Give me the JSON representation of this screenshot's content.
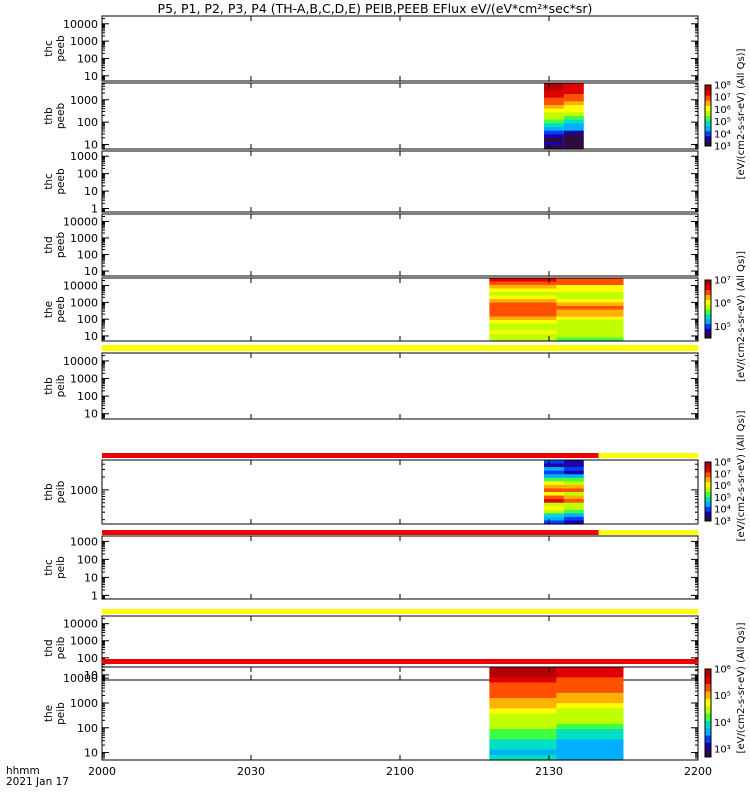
{
  "title": "P5, P1, P2, P3, P4 (TH-A,B,C,D,E) PEIB,PEEB EFlux eV/(eV*cm²*sec*sr)",
  "footer": {
    "label1": "hhmm",
    "label2": "2021 Jan 17"
  },
  "colors": {
    "rainbow": [
      "#2d0b3f",
      "#1a00a8",
      "#0040ff",
      "#00b0ff",
      "#00e0c0",
      "#40ff40",
      "#c0ff00",
      "#ffff00",
      "#ffb000",
      "#ff5000",
      "#e00000",
      "#b00000"
    ],
    "flag_yellow": "#ffff00",
    "flag_red": "#ee0000"
  },
  "chart_data": {
    "type": "heatmap",
    "x_axis": {
      "range": [
        "2000",
        "2200"
      ],
      "ticks": [
        "2000",
        "2030",
        "2100",
        "2130",
        "2200"
      ],
      "label": "hhmm",
      "sublabel": "2021 Jan 17"
    },
    "panels": [
      {
        "label": [
          "thc",
          "peeb"
        ],
        "yticks": [
          "10000",
          "1000",
          "100",
          "10"
        ],
        "ylog": [
          0.7,
          4.45
        ],
        "colorbar": null,
        "data": null
      },
      {
        "label": [
          "thb",
          "peeb"
        ],
        "yticks": [
          "1000",
          "100",
          "10"
        ],
        "ylog": [
          0.8,
          3.75
        ],
        "colorbar": {
          "ticks": [
            "10⁸",
            "10⁷",
            "10⁶",
            "10⁵",
            "10⁴",
            "10³"
          ],
          "log_range": [
            3,
            8
          ]
        },
        "data": {
          "x_range": [
            "2129",
            "2137"
          ],
          "profile": [
            0.95,
            0.95,
            0.9,
            0.87,
            0.82,
            0.76,
            0.7,
            0.65,
            0.58,
            0.52,
            0.45,
            0.38,
            0.3,
            0.18,
            0.12,
            0.05,
            0.1,
            0.05
          ]
        }
      },
      {
        "label": [
          "thc",
          "peeb"
        ],
        "yticks": [
          "1000",
          "100",
          "10",
          "1"
        ],
        "ylog": [
          -0.2,
          3.3
        ],
        "colorbar": null,
        "data": null
      },
      {
        "label": [
          "thd",
          "peeb"
        ],
        "yticks": [
          "10000",
          "1000",
          "100",
          "10"
        ],
        "ylog": [
          0.7,
          4.45
        ],
        "colorbar": null,
        "data": null
      },
      {
        "label": [
          "the",
          "peeb"
        ],
        "yticks": [
          "10000",
          "1000",
          "100",
          "10"
        ],
        "ylog": [
          0.7,
          4.45
        ],
        "colorbar": {
          "ticks": [
            "10⁷",
            "10⁶",
            "10⁵"
          ],
          "log_range": [
            5,
            7.5
          ]
        },
        "data": {
          "x_range": [
            "2118",
            "2145"
          ],
          "profile": [
            0.85,
            0.82,
            0.7,
            0.65,
            0.58,
            0.62,
            0.68,
            0.75,
            0.82,
            0.78,
            0.75,
            0.7,
            0.62,
            0.55,
            0.58,
            0.6,
            0.56,
            0.5
          ]
        }
      },
      {
        "label": [
          "thb",
          "peib"
        ],
        "yticks": [
          "10000",
          "1000",
          "100",
          "10"
        ],
        "ylog": [
          0.7,
          4.45
        ],
        "colorbar": null,
        "data": null
      },
      {
        "label": [
          "thb",
          "peib"
        ],
        "yticks": [
          "1000"
        ],
        "ylog": [
          2.2,
          3.7
        ],
        "colorbar": {
          "ticks": [
            "10⁸",
            "10⁷",
            "10⁶",
            "10⁵",
            "10⁴",
            "10³"
          ],
          "log_range": [
            3,
            8
          ]
        },
        "data": {
          "x_range": [
            "2129",
            "2137"
          ],
          "profile": [
            0.2,
            0.15,
            0.25,
            0.18,
            0.3,
            0.48,
            0.62,
            0.72,
            0.8,
            0.6,
            0.78,
            0.85,
            0.58,
            0.62,
            0.5,
            0.35,
            0.25,
            0.18
          ]
        }
      },
      {
        "label": [
          "thc",
          "peib"
        ],
        "yticks": [
          "1000",
          "100",
          "10",
          "1"
        ],
        "ylog": [
          -0.2,
          3.3
        ],
        "colorbar": null,
        "data": null
      },
      {
        "label": [
          "thd",
          "peib"
        ],
        "yticks": [
          "10000",
          "1000",
          "100",
          "10"
        ],
        "ylog": [
          0.7,
          4.45
        ],
        "colorbar": null,
        "data": null
      },
      {
        "label": [
          "the",
          "peib"
        ],
        "yticks": [
          "10000",
          "1000",
          "100",
          "10"
        ],
        "ylog": [
          0.7,
          4.45
        ],
        "colorbar": {
          "ticks": [
            "10⁶",
            "10⁵",
            "10⁴",
            "10³"
          ],
          "log_range": [
            3,
            6.3
          ]
        },
        "data": {
          "x_range": [
            "2118",
            "2145"
          ],
          "profile": [
            0.95,
            0.92,
            0.88,
            0.82,
            0.8,
            0.75,
            0.72,
            0.68,
            0.62,
            0.58,
            0.55,
            0.5,
            0.45,
            0.42,
            0.38,
            0.35,
            0.32,
            0.35
          ]
        }
      }
    ],
    "flag_bars": [
      {
        "after_panel": 5,
        "segments": [
          {
            "x_range": [
              "2000",
              "2200"
            ],
            "color": "yellow"
          }
        ]
      },
      {
        "after_panel": 6,
        "segments": [
          {
            "x_range": [
              "2000",
              "2140"
            ],
            "color": "red"
          },
          {
            "x_range": [
              "2140",
              "2200"
            ],
            "color": "yellow"
          }
        ]
      },
      {
        "after_panel": 7,
        "segments": [
          {
            "x_range": [
              "2000",
              "2140"
            ],
            "color": "red"
          },
          {
            "x_range": [
              "2140",
              "2200"
            ],
            "color": "yellow"
          }
        ]
      },
      {
        "after_panel": 8,
        "segments": [
          {
            "x_range": [
              "2000",
              "2200"
            ],
            "color": "yellow"
          }
        ]
      },
      {
        "after_panel": 10,
        "segments": [
          {
            "x_range": [
              "2000",
              "2200"
            ],
            "color": "red"
          }
        ]
      }
    ],
    "colorbar_labels": [
      {
        "text": "[eV/(cm2-s-sr-eV) (All Qs)]",
        "panels": [
          1,
          3
        ]
      },
      {
        "text": "[eV/(cm2-s-sr-eV) (All Qs)]",
        "panels": [
          4,
          6
        ]
      },
      {
        "text": "[eV/(cm2-s-sr-eV) (All Qs)]",
        "panels": [
          6,
          8
        ]
      },
      {
        "text": "[eV/(cm2-s-sr-eV) (All Qs)]",
        "panels": [
          9,
          10
        ]
      }
    ]
  }
}
